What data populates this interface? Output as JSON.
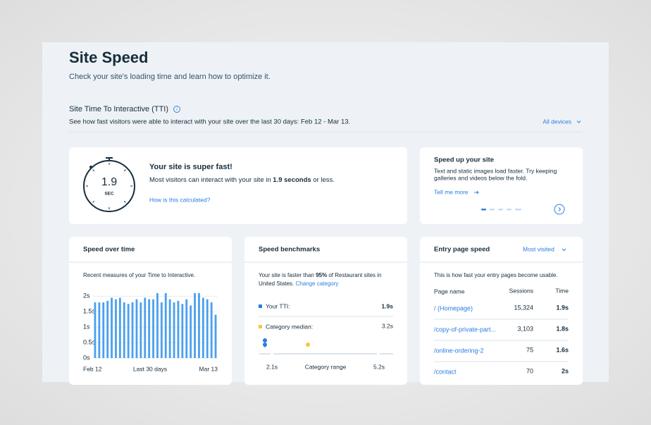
{
  "header": {
    "title": "Site Speed",
    "subtitle": "Check your site's loading time and learn how to optimize it."
  },
  "tti": {
    "title": "Site Time To Interactive (TTI)",
    "description": "See how fast visitors were able to interact with your site over the last 30 days: Feb 12 - Mar 13.",
    "device_filter": "All devices"
  },
  "summary": {
    "value": "1.9",
    "unit": "SEC",
    "heading": "Your site is super fast!",
    "text_before": "Most visitors can interact with your site in ",
    "text_bold": "1.9 seconds",
    "text_after": " or less.",
    "link": "How is this calculated?"
  },
  "tip": {
    "title": "Speed up your site",
    "lines": [
      "Text and static images load faster. Try keeping",
      "galleries and videos below the fold."
    ],
    "link": "Tell me more"
  },
  "speed_over_time": {
    "title": "Speed over time",
    "description": "Recent measures of your Time to Interactive.",
    "chart": {
      "type": "bar",
      "color": "#4a9ff0",
      "values": [
        1.8,
        1.8,
        1.8,
        1.85,
        1.95,
        1.9,
        1.95,
        1.8,
        1.75,
        1.8,
        1.9,
        1.8,
        1.95,
        1.9,
        1.9,
        2.1,
        1.8,
        2.1,
        1.9,
        1.8,
        1.85,
        1.75,
        1.9,
        1.7,
        2.1,
        2.1,
        1.95,
        1.9,
        1.8,
        1.4
      ],
      "ylim": [
        0,
        2.2
      ],
      "yticks": [
        {
          "value": 0,
          "label": "0s"
        },
        {
          "value": 0.5,
          "label": "0.5s"
        },
        {
          "value": 1,
          "label": "1s"
        },
        {
          "value": 1.5,
          "label": "1.5s"
        },
        {
          "value": 2,
          "label": "2s"
        }
      ],
      "grid": true,
      "x_start": "Feb 12",
      "x_middle": "Last 30 days",
      "x_end": "Mar 13"
    }
  },
  "benchmarks": {
    "title": "Speed benchmarks",
    "line1_before": "Your site is faster than ",
    "line1_bold": "95%",
    "line1_after": " of Restaurant sites in",
    "line2": "United States.",
    "link": "Change category",
    "rows": [
      {
        "label": "Your TTI:",
        "value": "1.9s"
      },
      {
        "label": "Category median:",
        "value": "3.2s"
      }
    ],
    "range_min": "2.1s",
    "range_label": "Category range",
    "range_max": "5.2s"
  },
  "entry": {
    "title": "Entry page speed",
    "filter": "Most visited",
    "description": "This is how fast your entry pages become usable.",
    "columns": [
      "Page name",
      "Sessions",
      "Time"
    ],
    "rows": [
      [
        "/ (Homepage)",
        "15,324",
        "1.9s"
      ],
      [
        "/copy-of-private-part...",
        "3,103",
        "1.8s"
      ],
      [
        "/online-ordering-2",
        "75",
        "1.6s"
      ],
      [
        "/contact",
        "70",
        "2s"
      ]
    ]
  }
}
